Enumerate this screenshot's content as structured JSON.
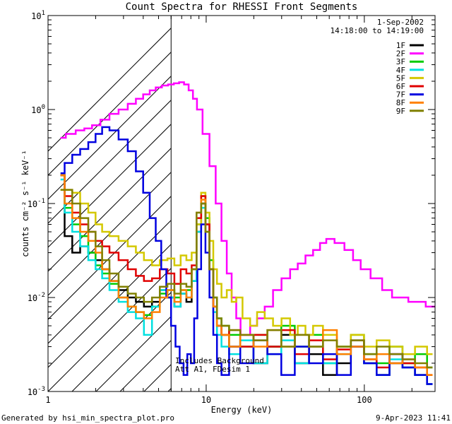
{
  "chart_data": {
    "type": "line",
    "title": "Count Spectra for RHESSI Front Segments",
    "xlabel": "Energy (keV)",
    "ylabel": "counts cm⁻² s⁻¹ keV⁻¹",
    "xscale": "log",
    "yscale": "log",
    "xlim": [
      1,
      280
    ],
    "ylim": [
      0.001,
      10
    ],
    "x_ticks": [
      {
        "value": 1,
        "label": "1"
      },
      {
        "value": 10,
        "label": "10"
      },
      {
        "value": 100,
        "label": "100"
      }
    ],
    "y_ticks": [
      {
        "value": 0.001,
        "base": "10",
        "exp": "-3"
      },
      {
        "value": 0.01,
        "base": "10",
        "exp": "-2"
      },
      {
        "value": 0.1,
        "base": "10",
        "exp": "-1"
      },
      {
        "value": 1,
        "base": "10",
        "exp": "0"
      },
      {
        "value": 10,
        "base": "10",
        "exp": "1"
      }
    ],
    "legend": {
      "position": "top-right",
      "date": "1-Sep-2002",
      "time_range": "14:18:00 to 14:19:00"
    },
    "attenuator_line_kev": 6.0,
    "hatched_region_kev": [
      1,
      6.0
    ],
    "annotations": [
      "Includes Background",
      "Att A1, FDesim 1"
    ],
    "footer_left": "Generated by hsi_min_spectra_plot.pro",
    "footer_right": "9-Apr-2023 11:41",
    "series": [
      {
        "name": "1F",
        "color": "#000000",
        "x": [
          1.2,
          1.35,
          1.5,
          1.7,
          1.9,
          2.1,
          2.3,
          2.6,
          3.0,
          3.4,
          3.8,
          4.3,
          4.8,
          5.4,
          6.0,
          6.6,
          7.2,
          7.8,
          8.4,
          9.0,
          9.6,
          10.2,
          10.8,
          11.4,
          12.0,
          13.0,
          15.0,
          18.0,
          22.0,
          27.0,
          33.0,
          40.0,
          50.0,
          60.0,
          75.0,
          90.0,
          110.0,
          130.0,
          160.0,
          190.0,
          230.0,
          270.0
        ],
        "y": [
          0.2,
          0.045,
          0.03,
          0.035,
          0.03,
          0.025,
          0.02,
          0.015,
          0.012,
          0.01,
          0.009,
          0.008,
          0.009,
          0.012,
          0.01,
          0.008,
          0.011,
          0.009,
          0.015,
          0.05,
          0.1,
          0.06,
          0.02,
          0.008,
          0.005,
          0.004,
          0.003,
          0.004,
          0.002,
          0.003,
          0.004,
          0.002,
          0.0025,
          0.0015,
          0.002,
          0.003,
          0.002,
          0.0015,
          0.002,
          0.0018,
          0.0015,
          0.0012
        ]
      },
      {
        "name": "2F",
        "color": "#ff00ff",
        "x": [
          1.2,
          1.4,
          1.6,
          1.8,
          2.0,
          2.3,
          2.6,
          3.0,
          3.4,
          3.8,
          4.2,
          4.6,
          5.0,
          5.5,
          6.0,
          6.5,
          7.0,
          7.5,
          8.0,
          8.5,
          9.0,
          10.0,
          11.0,
          12.0,
          13.0,
          14.0,
          15.0,
          16.0,
          17.0,
          18.0,
          20.0,
          22.0,
          25.0,
          28.0,
          32.0,
          36.0,
          40.0,
          45.0,
          50.0,
          55.0,
          60.0,
          70.0,
          80.0,
          90.0,
          100.0,
          120.0,
          140.0,
          160.0,
          180.0,
          200.0,
          230.0,
          260.0,
          280.0
        ],
        "y": [
          0.5,
          0.55,
          0.6,
          0.63,
          0.68,
          0.78,
          0.9,
          1.0,
          1.15,
          1.3,
          1.45,
          1.6,
          1.72,
          1.8,
          1.85,
          1.9,
          1.95,
          1.85,
          1.6,
          1.3,
          1.0,
          0.55,
          0.25,
          0.1,
          0.04,
          0.018,
          0.01,
          0.006,
          0.004,
          0.004,
          0.005,
          0.006,
          0.008,
          0.012,
          0.016,
          0.02,
          0.023,
          0.028,
          0.032,
          0.038,
          0.042,
          0.038,
          0.032,
          0.025,
          0.02,
          0.016,
          0.012,
          0.01,
          0.01,
          0.009,
          0.009,
          0.008,
          0.008
        ]
      },
      {
        "name": "3F",
        "color": "#00cc00",
        "x": [
          1.2,
          1.35,
          1.5,
          1.7,
          1.9,
          2.1,
          2.3,
          2.6,
          3.0,
          3.4,
          3.8,
          4.3,
          4.8,
          5.4,
          6.0,
          6.6,
          7.2,
          7.8,
          8.4,
          9.0,
          9.6,
          10.2,
          10.8,
          11.4,
          12.0,
          13.0,
          15.0,
          18.0,
          22.0,
          27.0,
          33.0,
          40.0,
          50.0,
          60.0,
          75.0,
          90.0,
          110.0,
          130.0,
          160.0,
          190.0,
          230.0,
          270.0
        ],
        "y": [
          0.2,
          0.09,
          0.06,
          0.045,
          0.03,
          0.022,
          0.018,
          0.014,
          0.01,
          0.008,
          0.007,
          0.0065,
          0.008,
          0.011,
          0.012,
          0.01,
          0.012,
          0.012,
          0.02,
          0.06,
          0.12,
          0.07,
          0.025,
          0.01,
          0.006,
          0.005,
          0.004,
          0.003,
          0.004,
          0.003,
          0.005,
          0.003,
          0.004,
          0.002,
          0.003,
          0.004,
          0.0025,
          0.002,
          0.003,
          0.002,
          0.0025,
          0.0018
        ]
      },
      {
        "name": "4F",
        "color": "#00e0e0",
        "x": [
          1.2,
          1.35,
          1.5,
          1.7,
          1.9,
          2.1,
          2.3,
          2.6,
          3.0,
          3.4,
          3.8,
          4.3,
          4.8,
          5.4,
          6.0,
          6.6,
          7.2,
          7.8,
          8.4,
          9.0,
          9.6,
          10.2,
          10.8,
          11.4,
          12.0,
          13.0,
          15.0,
          18.0,
          22.0,
          27.0,
          33.0,
          40.0,
          50.0,
          60.0,
          75.0,
          90.0,
          110.0,
          130.0,
          160.0,
          190.0,
          230.0,
          270.0
        ],
        "y": [
          0.18,
          0.08,
          0.05,
          0.035,
          0.025,
          0.02,
          0.016,
          0.012,
          0.009,
          0.007,
          0.006,
          0.004,
          0.008,
          0.012,
          0.01,
          0.008,
          0.011,
          0.01,
          0.015,
          0.05,
          0.09,
          0.05,
          0.02,
          0.007,
          0.004,
          0.003,
          0.0025,
          0.0035,
          0.002,
          0.0025,
          0.0035,
          0.002,
          0.003,
          0.002,
          0.0025,
          0.0035,
          0.002,
          0.0015,
          0.0022,
          0.0018,
          0.0015,
          0.0012
        ]
      },
      {
        "name": "5F",
        "color": "#d4c800",
        "x": [
          1.2,
          1.35,
          1.5,
          1.7,
          1.9,
          2.1,
          2.3,
          2.6,
          3.0,
          3.4,
          3.8,
          4.3,
          4.8,
          5.4,
          6.0,
          6.6,
          7.2,
          7.8,
          8.4,
          9.0,
          9.6,
          10.2,
          10.8,
          11.4,
          12.0,
          13.0,
          14.0,
          15.0,
          16.0,
          18.0,
          20.0,
          22.0,
          25.0,
          28.0,
          32.0,
          36.0,
          40.0,
          45.0,
          50.0,
          60.0,
          75.0,
          90.0,
          110.0,
          130.0,
          160.0,
          190.0,
          230.0,
          270.0
        ],
        "y": [
          0.14,
          0.14,
          0.13,
          0.1,
          0.08,
          0.06,
          0.05,
          0.045,
          0.04,
          0.035,
          0.03,
          0.025,
          0.022,
          0.025,
          0.026,
          0.022,
          0.028,
          0.025,
          0.03,
          0.06,
          0.13,
          0.08,
          0.04,
          0.02,
          0.014,
          0.01,
          0.012,
          0.009,
          0.01,
          0.006,
          0.005,
          0.007,
          0.006,
          0.005,
          0.006,
          0.004,
          0.005,
          0.004,
          0.005,
          0.004,
          0.003,
          0.004,
          0.003,
          0.0035,
          0.003,
          0.0025,
          0.003,
          0.0025
        ]
      },
      {
        "name": "6F",
        "color": "#e00000",
        "x": [
          1.2,
          1.35,
          1.5,
          1.7,
          1.9,
          2.1,
          2.3,
          2.6,
          3.0,
          3.4,
          3.8,
          4.3,
          4.8,
          5.4,
          6.0,
          6.6,
          7.2,
          7.8,
          8.4,
          9.0,
          9.6,
          10.2,
          10.8,
          11.4,
          12.0,
          13.0,
          15.0,
          18.0,
          22.0,
          27.0,
          33.0,
          40.0,
          50.0,
          60.0,
          75.0,
          90.0,
          110.0,
          130.0,
          160.0,
          190.0,
          230.0,
          270.0
        ],
        "y": [
          0.2,
          0.12,
          0.08,
          0.06,
          0.05,
          0.04,
          0.035,
          0.03,
          0.025,
          0.02,
          0.017,
          0.015,
          0.016,
          0.02,
          0.018,
          0.014,
          0.02,
          0.018,
          0.022,
          0.07,
          0.12,
          0.06,
          0.02,
          0.008,
          0.005,
          0.004,
          0.0045,
          0.003,
          0.004,
          0.003,
          0.0045,
          0.0025,
          0.0035,
          0.0022,
          0.0028,
          0.0035,
          0.0022,
          0.0018,
          0.0025,
          0.002,
          0.0018,
          0.0015
        ]
      },
      {
        "name": "7F",
        "color": "#0000e0",
        "x": [
          1.2,
          1.35,
          1.5,
          1.7,
          1.9,
          2.1,
          2.3,
          2.6,
          3.0,
          3.4,
          3.8,
          4.2,
          4.6,
          5.0,
          5.4,
          5.8,
          6.2,
          6.6,
          7.0,
          7.4,
          7.8,
          8.2,
          8.6,
          9.0,
          9.6,
          10.2,
          10.8,
          11.4,
          12.0,
          13.0,
          15.0,
          18.0,
          22.0,
          27.0,
          33.0,
          40.0,
          50.0,
          60.0,
          75.0,
          90.0,
          110.0,
          130.0,
          160.0,
          190.0,
          230.0,
          270.0
        ],
        "y": [
          0.21,
          0.27,
          0.33,
          0.38,
          0.45,
          0.55,
          0.65,
          0.6,
          0.48,
          0.36,
          0.22,
          0.13,
          0.07,
          0.04,
          0.02,
          0.01,
          0.005,
          0.003,
          0.002,
          0.0015,
          0.0025,
          0.002,
          0.006,
          0.02,
          0.06,
          0.03,
          0.01,
          0.004,
          0.002,
          0.0015,
          0.003,
          0.002,
          0.0035,
          0.0025,
          0.0015,
          0.003,
          0.002,
          0.0025,
          0.0015,
          0.003,
          0.002,
          0.0015,
          0.0025,
          0.0018,
          0.0015,
          0.0012
        ]
      },
      {
        "name": "8F",
        "color": "#ff8000",
        "x": [
          1.2,
          1.35,
          1.5,
          1.7,
          1.9,
          2.1,
          2.3,
          2.6,
          3.0,
          3.4,
          3.8,
          4.3,
          4.8,
          5.4,
          6.0,
          6.6,
          7.2,
          7.8,
          8.4,
          9.0,
          9.6,
          10.2,
          10.8,
          11.4,
          12.0,
          13.0,
          15.0,
          18.0,
          22.0,
          27.0,
          33.0,
          40.0,
          50.0,
          60.0,
          75.0,
          90.0,
          110.0,
          130.0,
          160.0,
          190.0,
          230.0,
          270.0
        ],
        "y": [
          0.2,
          0.1,
          0.07,
          0.05,
          0.04,
          0.03,
          0.02,
          0.015,
          0.01,
          0.008,
          0.007,
          0.006,
          0.007,
          0.01,
          0.012,
          0.009,
          0.012,
          0.01,
          0.02,
          0.08,
          0.11,
          0.05,
          0.02,
          0.008,
          0.005,
          0.004,
          0.003,
          0.004,
          0.003,
          0.0045,
          0.003,
          0.004,
          0.003,
          0.0045,
          0.0025,
          0.003,
          0.0022,
          0.0025,
          0.002,
          0.0022,
          0.0018,
          0.0015
        ]
      },
      {
        "name": "9F",
        "color": "#808000",
        "x": [
          1.2,
          1.35,
          1.5,
          1.7,
          1.9,
          2.1,
          2.3,
          2.6,
          3.0,
          3.4,
          3.8,
          4.3,
          4.8,
          5.4,
          6.0,
          6.6,
          7.2,
          7.8,
          8.4,
          9.0,
          9.6,
          10.2,
          10.8,
          11.4,
          12.0,
          13.0,
          15.0,
          18.0,
          22.0,
          27.0,
          33.0,
          40.0,
          50.0,
          60.0,
          75.0,
          90.0,
          110.0,
          130.0,
          160.0,
          190.0,
          230.0,
          270.0
        ],
        "y": [
          0.14,
          0.14,
          0.1,
          0.07,
          0.05,
          0.035,
          0.025,
          0.018,
          0.013,
          0.011,
          0.01,
          0.009,
          0.01,
          0.013,
          0.014,
          0.011,
          0.014,
          0.013,
          0.02,
          0.08,
          0.1,
          0.05,
          0.02,
          0.01,
          0.006,
          0.005,
          0.0045,
          0.004,
          0.0035,
          0.0045,
          0.003,
          0.004,
          0.003,
          0.0035,
          0.003,
          0.0035,
          0.0025,
          0.003,
          0.0025,
          0.0022,
          0.002,
          0.0018
        ]
      }
    ]
  }
}
